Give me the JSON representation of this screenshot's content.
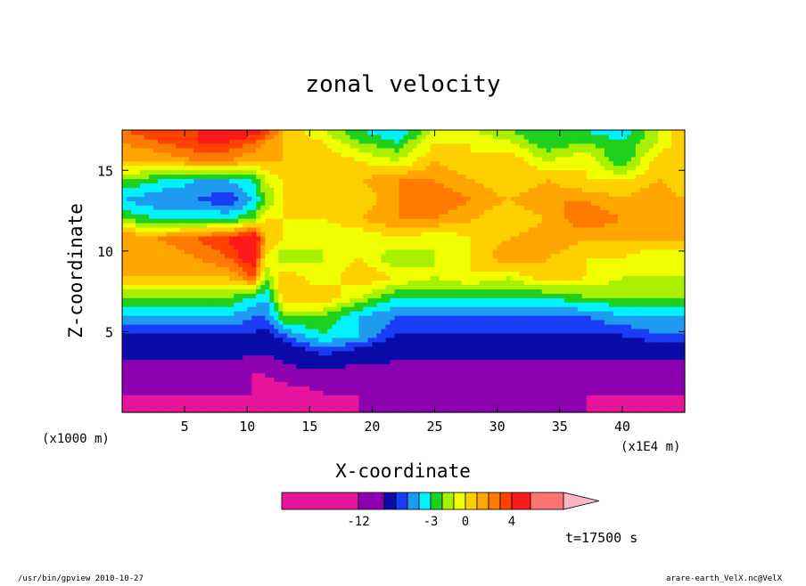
{
  "chart_data": {
    "type": "heatmap",
    "title": "zonal velocity",
    "xlabel": "X-coordinate",
    "ylabel": "Z-coordinate",
    "x_unit_label": "(x1E4 m)",
    "y_unit_label": "(x1000 m)",
    "xlim": [
      0,
      45
    ],
    "ylim": [
      0,
      17.5
    ],
    "x_ticks": [
      5,
      10,
      15,
      20,
      25,
      30,
      35,
      40
    ],
    "y_ticks": [
      5,
      10,
      15
    ],
    "time_label": "t=17500 s",
    "colorbar": {
      "levels": [
        -12,
        -9,
        -6,
        -5,
        -4,
        -3,
        -2,
        -1,
        0,
        1,
        2,
        3,
        4,
        6,
        9
      ],
      "colors": [
        "#e6159b",
        "#8c00b0",
        "#0b0ba8",
        "#1a3cf5",
        "#1e9bf0",
        "#00f2ff",
        "#1fd11f",
        "#a8f000",
        "#f0ff00",
        "#ffd000",
        "#ffa500",
        "#ff7a00",
        "#ff4200",
        "#ff1a1a",
        "#ff7272",
        "#ffb5c5"
      ],
      "tick_labels": [
        {
          "value": -12,
          "text": "-12"
        },
        {
          "value": -3,
          "text": "-3"
        },
        {
          "value": 0,
          "text": "0"
        },
        {
          "value": 4,
          "text": "4"
        }
      ],
      "extend": "max"
    },
    "field": {
      "x": [
        0,
        3,
        6,
        8.5,
        10.5,
        11.5,
        13,
        16,
        19,
        22,
        25,
        28,
        31,
        34,
        37,
        40,
        43,
        45
      ],
      "z": [
        0,
        1.2,
        2.4,
        3.6,
        4.8,
        6.0,
        7.2,
        8.4,
        9.6,
        10.8,
        12.0,
        13.2,
        14.4,
        15.6,
        16.8,
        17.5
      ],
      "values": [
        [
          -14,
          -14,
          -13,
          -13,
          -12,
          -14,
          -13,
          -13,
          -12,
          -12,
          -12,
          -12,
          -12,
          -12,
          -12,
          -13,
          -14,
          -14
        ],
        [
          -12,
          -12,
          -12,
          -12,
          -12,
          -14,
          -14,
          -12,
          -12,
          -12,
          -12,
          -12,
          -12,
          -12,
          -12,
          -12,
          -12,
          -12
        ],
        [
          -11,
          -11,
          -11,
          -11,
          -12,
          -12,
          -10,
          -10,
          -11,
          -11,
          -11,
          -11,
          -11,
          -11,
          -11,
          -11,
          -11,
          -11
        ],
        [
          -8,
          -8,
          -8,
          -8,
          -9,
          -9,
          -8,
          -6,
          -7,
          -8,
          -8,
          -8,
          -8,
          -8,
          -8,
          -8,
          -8,
          -8
        ],
        [
          -6,
          -6,
          -6,
          -6,
          -6,
          -7,
          -5,
          -3,
          -4,
          -6,
          -6,
          -6,
          -6,
          -6,
          -6,
          -6,
          -5,
          -5
        ],
        [
          -4,
          -4,
          -4,
          -4,
          -5,
          -5,
          -2,
          -2,
          -4,
          -5,
          -5,
          -5,
          -5,
          -5,
          -5,
          -4,
          -4,
          -4
        ],
        [
          -2,
          -2,
          -2,
          -2,
          -3,
          -4,
          1,
          1,
          -1,
          -3,
          -3,
          -3,
          -3,
          -3,
          -2,
          -2,
          -2,
          -2
        ],
        [
          1,
          1,
          1,
          1,
          3,
          -2,
          1,
          -1,
          1,
          0,
          -1,
          0,
          -1,
          1,
          0,
          -1,
          -1,
          -1
        ],
        [
          1,
          1,
          2,
          3,
          5,
          0,
          -2,
          -1,
          0,
          -2,
          -1,
          0,
          2,
          1,
          0,
          0,
          -1,
          -1
        ],
        [
          2,
          2,
          3,
          4,
          6,
          1,
          0,
          -1,
          -1,
          0,
          -1,
          0,
          1,
          2,
          1,
          1,
          1,
          1
        ],
        [
          -2,
          -3,
          -3,
          -3,
          -2,
          0,
          0,
          0,
          1,
          2,
          2,
          1,
          0,
          1,
          3,
          2,
          1,
          1
        ],
        [
          -4,
          -5,
          -5,
          -6,
          -4,
          -2,
          0,
          0,
          0,
          2,
          3,
          2,
          1,
          2,
          2,
          1,
          2,
          1
        ],
        [
          -2,
          -3,
          -4,
          -4,
          -3,
          -1,
          0,
          0,
          1,
          2,
          2,
          1,
          0,
          1,
          0,
          0,
          1,
          0
        ],
        [
          1,
          1,
          2,
          2,
          1,
          1,
          1,
          1,
          0,
          -1,
          1,
          0,
          1,
          -1,
          0,
          -3,
          1,
          0
        ],
        [
          2,
          3,
          4,
          4,
          3,
          2,
          1,
          0,
          -2,
          -3,
          0,
          0,
          -1,
          -3,
          -2,
          -3,
          -1,
          1
        ],
        [
          3,
          4,
          4,
          5,
          5,
          4,
          1,
          -1,
          -3,
          -4,
          -1,
          -1,
          -2,
          -3,
          -3,
          -4,
          -1,
          1
        ]
      ]
    }
  },
  "footer": {
    "left": "/usr/bin/gpview  2010-10-27",
    "right": "arare-earth_VelX.nc@VelX"
  }
}
